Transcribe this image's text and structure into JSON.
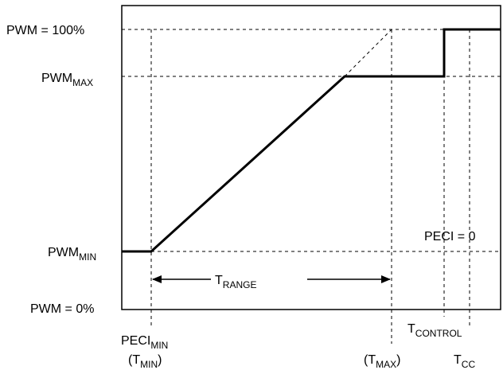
{
  "y_labels": {
    "pwm_100": "PWM = 100%",
    "pwm_max_main": "PWM",
    "pwm_max_sub": "MAX",
    "pwm_min_main": "PWM",
    "pwm_min_sub": "MIN",
    "pwm_0": "PWM = 0%"
  },
  "x_labels": {
    "peci_min_main": "PECI",
    "peci_min_sub": "MIN",
    "tmin_open": "(T",
    "tmin_sub": "MIN",
    "tmin_close": ")",
    "tmax_open": "(T",
    "tmax_sub": "MAX",
    "tmax_close": ")",
    "tcontrol_main": "T",
    "tcontrol_sub": "CONTROL",
    "tcc_main": "T",
    "tcc_sub": "CC"
  },
  "annotations": {
    "peci_zero": "PECI = 0",
    "trange_main": "T",
    "trange_sub": "RANGE"
  }
}
